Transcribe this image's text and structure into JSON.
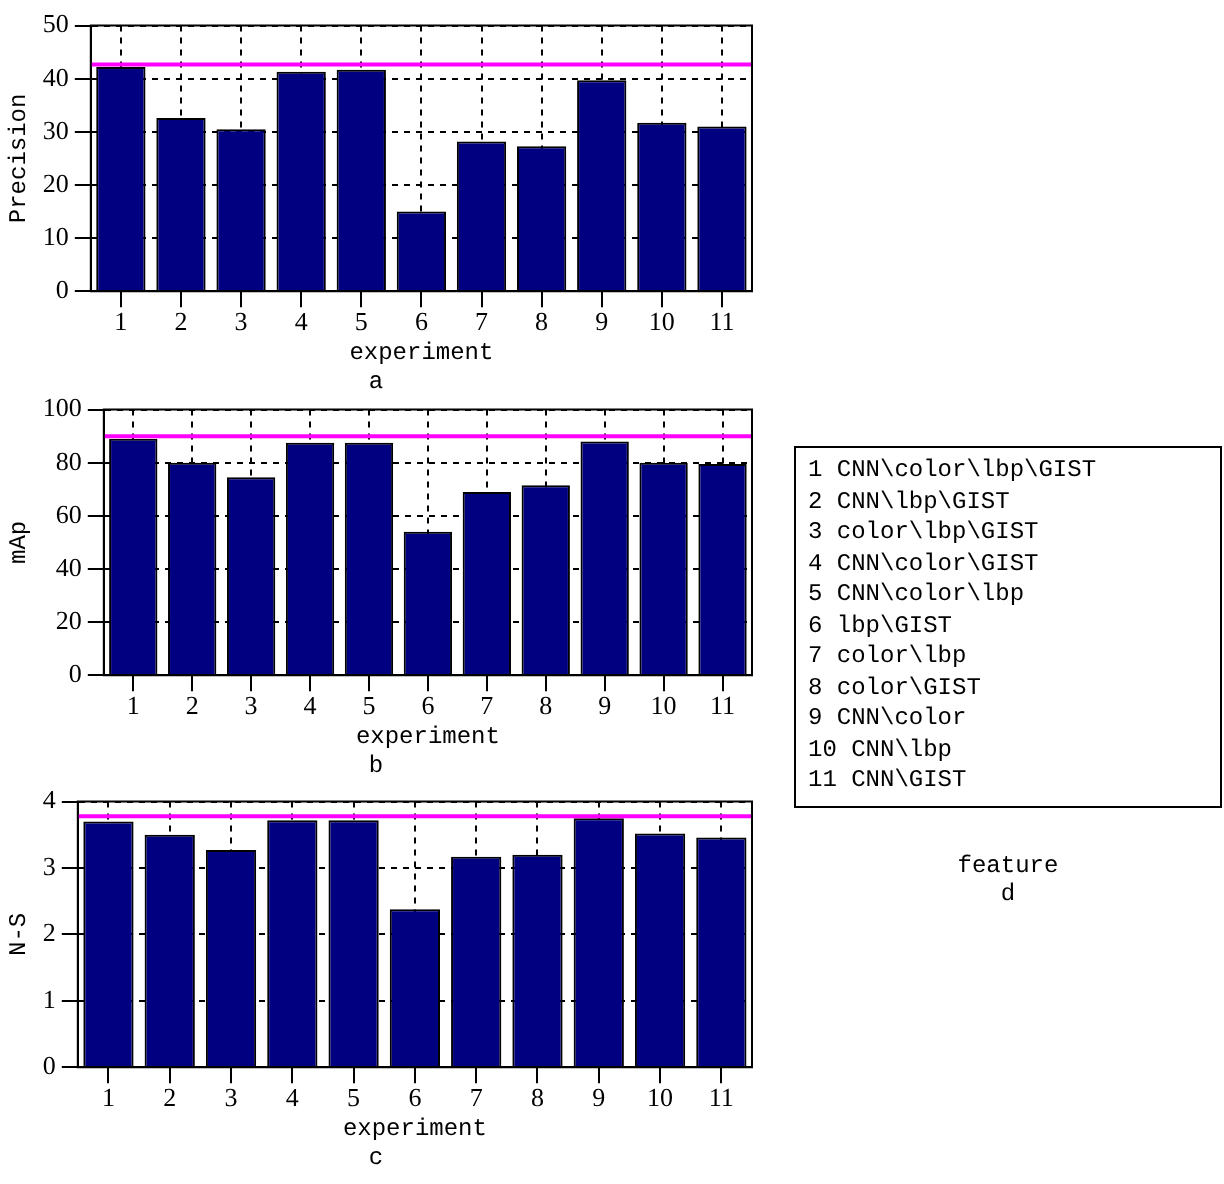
{
  "chart_data": [
    {
      "type": "bar",
      "ylabel": "Precision",
      "xlabel": "experiment",
      "subtitle": "a",
      "categories": [
        "1",
        "2",
        "3",
        "4",
        "5",
        "6",
        "7",
        "8",
        "9",
        "10",
        "11"
      ],
      "values": [
        42.2,
        32.6,
        30.5,
        41.3,
        41.7,
        15,
        28.2,
        27.3,
        39.7,
        31.7,
        31
      ],
      "color": "#000080",
      "ylim": [
        0,
        50
      ],
      "yticks": [
        0,
        10,
        20,
        30,
        40,
        50
      ],
      "grid": true,
      "ref_lines": [
        {
          "axis": "y",
          "value": 42.7,
          "color": "#ff00ff"
        }
      ]
    },
    {
      "type": "bar",
      "ylabel": "mAp",
      "xlabel": "experiment",
      "subtitle": "b",
      "categories": [
        "1",
        "2",
        "3",
        "4",
        "5",
        "6",
        "7",
        "8",
        "9",
        "10",
        "11"
      ],
      "values": [
        89,
        80,
        74.5,
        87.5,
        87.5,
        54,
        69,
        71.5,
        88,
        80,
        79.5
      ],
      "color": "#000080",
      "ylim": [
        0,
        100
      ],
      "yticks": [
        0,
        20,
        40,
        60,
        80,
        100
      ],
      "grid": true,
      "ref_lines": [
        {
          "axis": "y",
          "value": 90,
          "color": "#ff00ff"
        }
      ]
    },
    {
      "type": "bar",
      "ylabel": "N-S",
      "xlabel": "experiment",
      "subtitle": "c",
      "categories": [
        "1",
        "2",
        "3",
        "4",
        "5",
        "6",
        "7",
        "8",
        "9",
        "10",
        "11"
      ],
      "values": [
        3.7,
        3.5,
        3.27,
        3.72,
        3.72,
        2.38,
        3.17,
        3.2,
        3.75,
        3.52,
        3.46
      ],
      "color": "#000080",
      "ylim": [
        0,
        4
      ],
      "yticks": [
        0,
        1,
        2,
        3,
        4
      ],
      "grid": true,
      "ref_lines": [
        {
          "axis": "y",
          "value": 3.78,
          "color": "#ff00ff"
        }
      ]
    },
    {
      "type": "other",
      "xlabel": "feature",
      "subtitle": "d",
      "annotations": [
        "1 CNN\\color\\lbp\\GIST",
        "2 CNN\\lbp\\GIST",
        "3 color\\lbp\\GIST",
        "4 CNN\\color\\GIST",
        "5 CNN\\color\\lbp",
        "6 lbp\\GIST",
        "7 color\\lbp",
        "8 color\\GIST",
        "9 CNN\\color",
        "10 CNN\\lbp",
        "11 CNN\\GIST"
      ]
    }
  ]
}
